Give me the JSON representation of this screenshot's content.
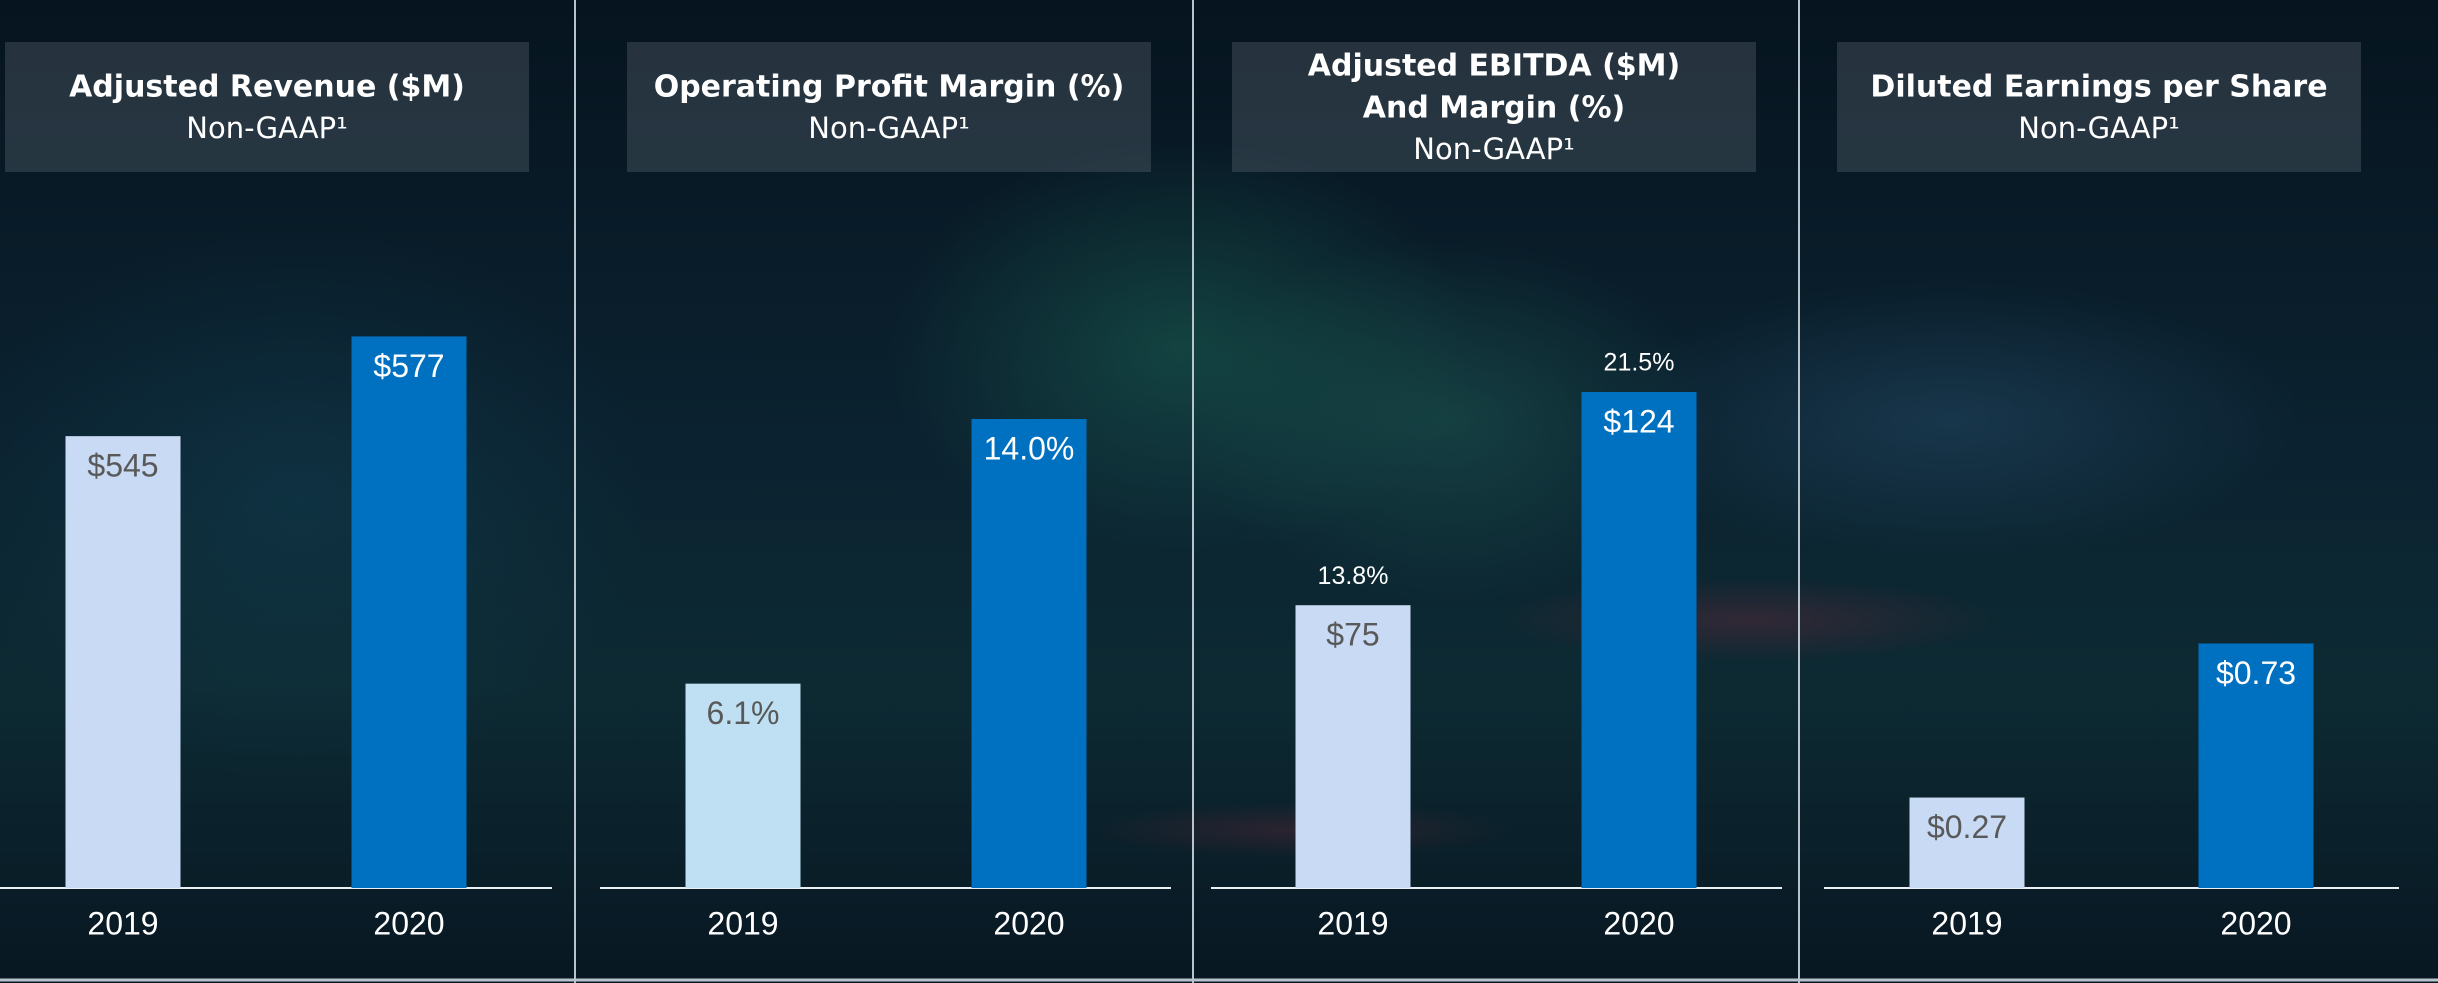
{
  "chart_data": [
    {
      "type": "bar",
      "title": [
        "Adjusted Revenue ($M)"
      ],
      "subtitle": "Non-GAAP¹",
      "categories": [
        "2019",
        "2020"
      ],
      "values": [
        545,
        577
      ],
      "value_labels": [
        "$545",
        "$577"
      ],
      "colors": [
        "#c9daf5",
        "#0070c0"
      ],
      "ylim": [
        400,
        615
      ]
    },
    {
      "type": "bar",
      "title": [
        "Operating Profit Margin (%)"
      ],
      "subtitle": "Non-GAAP¹",
      "categories": [
        "2019",
        "2020"
      ],
      "values": [
        6.1,
        14.0
      ],
      "value_labels": [
        "6.1%",
        "14.0%"
      ],
      "colors": [
        "#bfe0f3",
        "#0070c0"
      ],
      "ylim": [
        0,
        20
      ]
    },
    {
      "type": "bar",
      "title": [
        "Adjusted EBITDA ($M)",
        "And Margin (%)"
      ],
      "subtitle": "Non-GAAP¹",
      "categories": [
        "2019",
        "2020"
      ],
      "values": [
        75,
        124
      ],
      "value_labels": [
        "$75",
        "$124"
      ],
      "annotations": [
        "13.8%",
        "21.5%"
      ],
      "colors": [
        "#c9daf5",
        "#0070c0"
      ],
      "ylim": [
        10,
        164
      ]
    },
    {
      "type": "bar",
      "title": [
        "Diluted Earnings per Share"
      ],
      "subtitle": "Non-GAAP¹",
      "categories": [
        "2019",
        "2020"
      ],
      "values": [
        0.27,
        0.73
      ],
      "value_labels": [
        "$0.27",
        "$0.73"
      ],
      "colors": [
        "#c9daf5",
        "#0070c0"
      ],
      "ylim": [
        0,
        2
      ]
    }
  ]
}
